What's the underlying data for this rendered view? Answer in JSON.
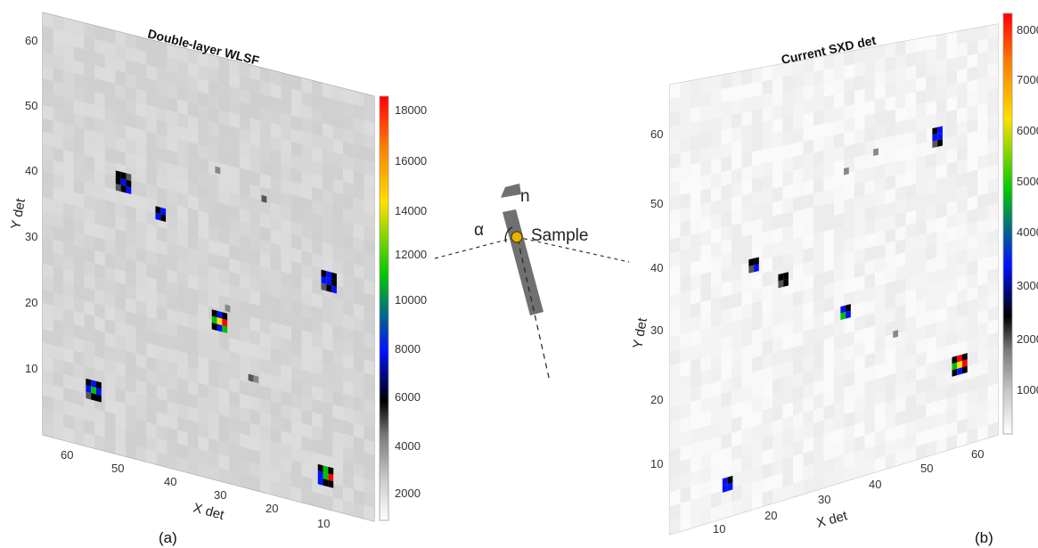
{
  "panel_a": {
    "title": "Double-layer WLSF",
    "x_label": "X det",
    "y_label": "Y det",
    "x_ticks": [
      "60",
      "50",
      "40",
      "30",
      "20",
      "10"
    ],
    "y_ticks": [
      "60",
      "50",
      "40",
      "30",
      "20",
      "10"
    ],
    "colorbar_ticks": [
      "18000",
      "16000",
      "14000",
      "12000",
      "10000",
      "8000",
      "6000",
      "4000",
      "2000"
    ],
    "caption": "(a)"
  },
  "panel_b": {
    "title": "Current SXD det",
    "x_label": "X det",
    "y_label": "Y det",
    "x_ticks": [
      "10",
      "20",
      "30",
      "40",
      "50",
      "60"
    ],
    "y_ticks": [
      "60",
      "50",
      "40",
      "30",
      "20",
      "10"
    ],
    "colorbar_ticks": [
      "8000",
      "7000",
      "6000",
      "5000",
      "4000",
      "3000",
      "2000",
      "1000"
    ],
    "caption": "(b)"
  },
  "diagram": {
    "normal_label": "n",
    "angle_label": "α",
    "sample_label": "Sample",
    "sample_color": "#e8b400"
  },
  "colors": {
    "colormap": [
      "#ffffff",
      "#c8c8c8",
      "#7a7a7a",
      "#000000",
      "#0010ff",
      "#00c000",
      "#ffe000",
      "#ff8000",
      "#ff0000"
    ]
  }
}
